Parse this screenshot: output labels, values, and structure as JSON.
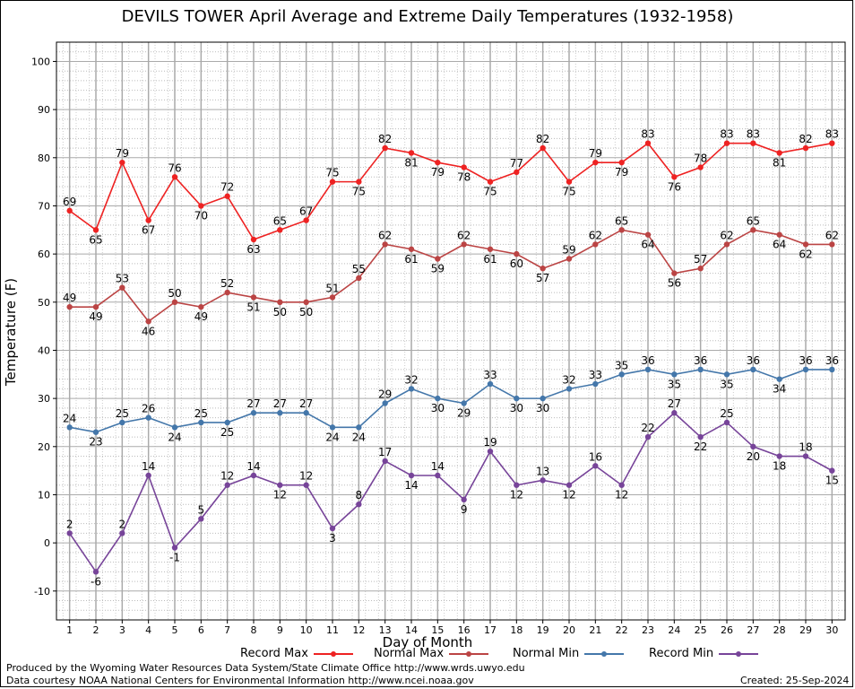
{
  "chart_data": {
    "type": "line",
    "title": "DEVILS TOWER April Average and Extreme Daily Temperatures (1932-1958)",
    "xlabel": "Day of Month",
    "ylabel": "Temperature (F)",
    "x": [
      1,
      2,
      3,
      4,
      5,
      6,
      7,
      8,
      9,
      10,
      11,
      12,
      13,
      14,
      15,
      16,
      17,
      18,
      19,
      20,
      21,
      22,
      23,
      24,
      25,
      26,
      27,
      28,
      29,
      30
    ],
    "xlim": [
      0.5,
      30.5
    ],
    "ylim": [
      -16,
      104
    ],
    "yticks": [
      -10,
      0,
      10,
      20,
      30,
      40,
      50,
      60,
      70,
      80,
      90,
      100
    ],
    "grid": true,
    "legend_position": "bottom",
    "series": [
      {
        "name": "Record Max",
        "color": "#ee2222",
        "values": [
          69,
          65,
          79,
          67,
          76,
          70,
          72,
          63,
          65,
          67,
          75,
          75,
          82,
          81,
          79,
          78,
          75,
          77,
          82,
          75,
          79,
          79,
          83,
          76,
          78,
          83,
          83,
          81,
          82,
          83
        ]
      },
      {
        "name": "Normal Max",
        "color": "#bb4444",
        "values": [
          49,
          49,
          53,
          46,
          50,
          49,
          52,
          51,
          50,
          50,
          51,
          55,
          62,
          61,
          59,
          62,
          61,
          60,
          57,
          59,
          62,
          65,
          64,
          56,
          57,
          62,
          65,
          64,
          62,
          62
        ]
      },
      {
        "name": "Normal Min",
        "color": "#4477aa",
        "values": [
          24,
          23,
          25,
          26,
          24,
          25,
          25,
          27,
          27,
          27,
          24,
          24,
          29,
          32,
          30,
          29,
          33,
          30,
          30,
          32,
          33,
          35,
          36,
          35,
          36,
          35,
          36,
          34,
          36,
          36
        ]
      },
      {
        "name": "Record Min",
        "color": "#774499",
        "values": [
          2,
          -6,
          2,
          14,
          -1,
          5,
          12,
          14,
          12,
          12,
          3,
          8,
          17,
          14,
          14,
          9,
          19,
          12,
          13,
          12,
          16,
          12,
          22,
          27,
          22,
          25,
          20,
          18,
          18,
          15
        ]
      }
    ]
  },
  "footer": {
    "producer": "Produced by the Wyoming Water Resources Data System/State Climate Office http://www.wrds.uwyo.edu",
    "courtesy": "Data courtesy NOAA National Centers for Environmental Information http://www.ncei.noaa.gov",
    "created": "Created: 25-Sep-2024"
  }
}
